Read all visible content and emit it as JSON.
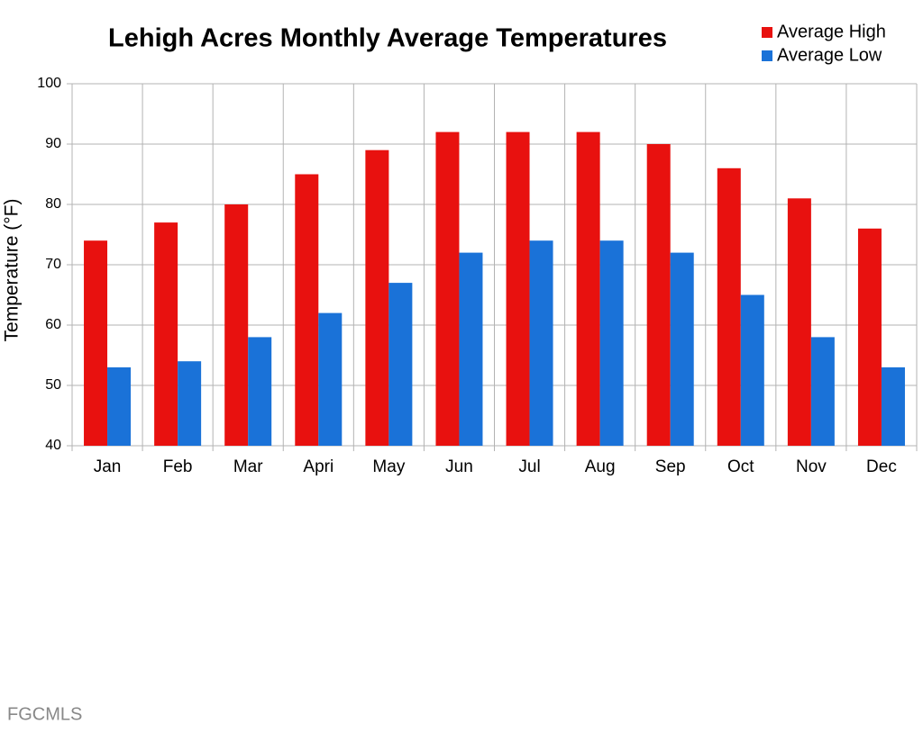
{
  "chart_data": {
    "type": "bar",
    "title": "Lehigh Acres Monthly Average Temperatures",
    "y_label": "Temperature (°F)",
    "categories": [
      "Jan",
      "Feb",
      "Mar",
      "Apri",
      "May",
      "Jun",
      "Jul",
      "Aug",
      "Sep",
      "Oct",
      "Nov",
      "Dec"
    ],
    "series": [
      {
        "name": "Average High",
        "color": "#e8110f",
        "values": [
          74,
          77,
          80,
          85,
          89,
          92,
          92,
          92,
          90,
          86,
          81,
          76
        ]
      },
      {
        "name": "Average Low",
        "color": "#1a72d8",
        "values": [
          53,
          54,
          58,
          62,
          67,
          72,
          74,
          74,
          72,
          65,
          58,
          53
        ]
      }
    ],
    "ylim": [
      40,
      100
    ],
    "yticks": [
      40,
      50,
      60,
      70,
      80,
      90,
      100
    ],
    "grid": true,
    "legend": "top-right"
  },
  "watermark": "FGCMLS"
}
